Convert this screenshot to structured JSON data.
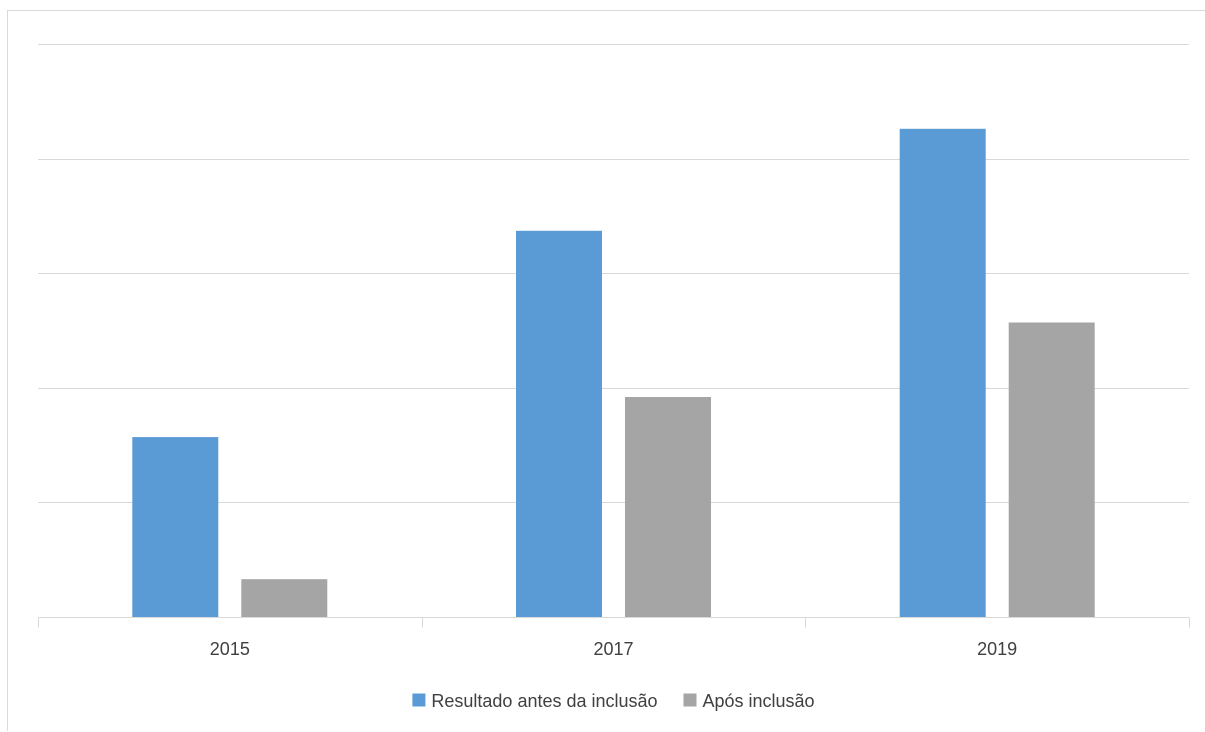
{
  "chart_data": {
    "type": "bar",
    "categories": [
      "2015",
      "2017",
      "2019"
    ],
    "series": [
      {
        "name": "Resultado antes da inclusão",
        "color": "#5b9bd5",
        "values": [
          1.57,
          3.37,
          4.26
        ]
      },
      {
        "name": "Após inclusão",
        "color": "#a5a5a5",
        "values": [
          0.33,
          1.92,
          2.57
        ]
      }
    ],
    "ylim": [
      0,
      5
    ],
    "y_gridlines": 5,
    "y_tick_labels_visible": false,
    "grid": true,
    "legend": "bottom",
    "title": "",
    "xlabel": "",
    "ylabel": ""
  }
}
